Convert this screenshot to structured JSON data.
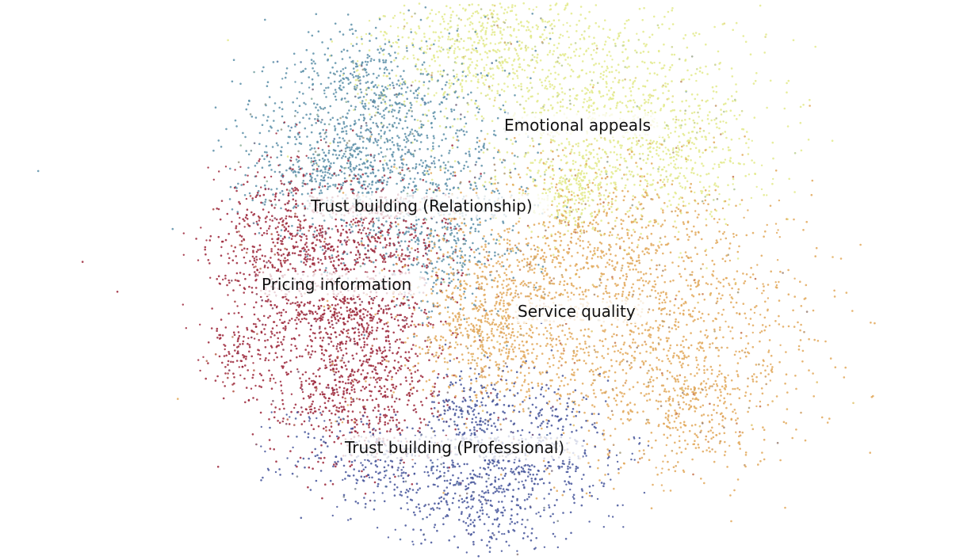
{
  "chart_data": {
    "type": "scatter",
    "title": "",
    "xlabel": "",
    "ylabel": "",
    "axes_visible": false,
    "grid": false,
    "legend": "none",
    "clusters": [
      {
        "label": "Emotional appeals",
        "color": "#e3ea8c"
      },
      {
        "label": "Trust building (Relationship)",
        "color": "#5c8fa8"
      },
      {
        "label": "Pricing information",
        "color": "#9b2438"
      },
      {
        "label": "Service quality",
        "color": "#e2a85a"
      },
      {
        "label": "Trust building (Professional)",
        "color": "#44539a"
      }
    ]
  }
}
